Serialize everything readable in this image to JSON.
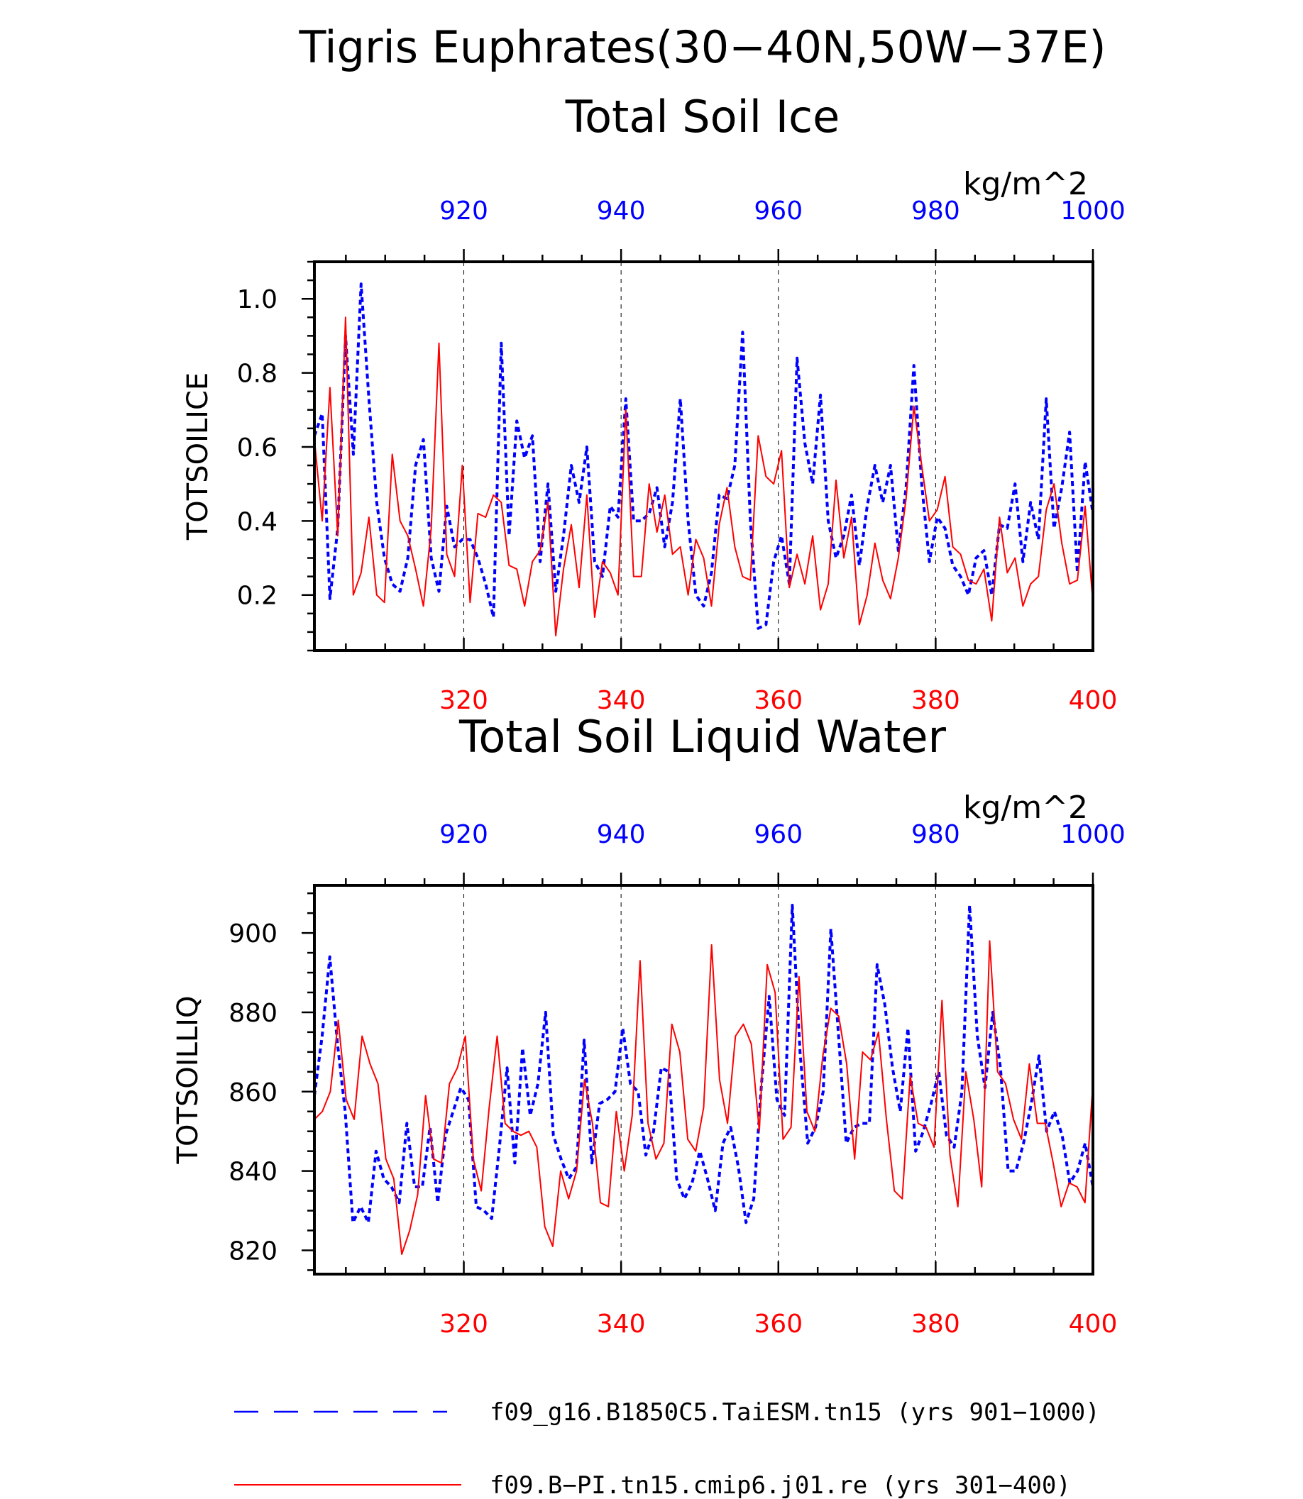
{
  "figure": {
    "title_line1": "Tigris Euphrates(30−40N,50W−37E)",
    "title_line2": "Total Soil Ice"
  },
  "colors": {
    "red": "#ff0000",
    "blue": "#0000ff",
    "axis": "#000000"
  },
  "legend": [
    {
      "label": "f09_g16.B1850C5.TaiESM.tn15 (yrs 901−1000)",
      "color": "#0000ff",
      "style": "dashed"
    },
    {
      "label": "f09.B−PI.tn15.cmip6.j01.re (yrs 301−400)",
      "color": "#ff0000",
      "style": "solid"
    }
  ],
  "chart_data": [
    {
      "type": "line",
      "title": "",
      "units": "kg/m^2",
      "ylabel": "TOTSOILICE",
      "ylim": [
        0.05,
        1.1
      ],
      "yticks": [
        0.2,
        0.4,
        0.6,
        0.8,
        1.0
      ],
      "ytick_labels": [
        "0.2",
        "0.4",
        "0.6",
        "0.8",
        "1.0"
      ],
      "bottom_axis": {
        "range": [
          301,
          400
        ],
        "ticks": [
          320,
          340,
          360,
          380,
          400
        ],
        "tick_labels": [
          "320",
          "340",
          "360",
          "380",
          "400"
        ]
      },
      "top_axis": {
        "range": [
          901,
          1000
        ],
        "ticks": [
          920,
          940,
          960,
          980,
          1000
        ],
        "tick_labels": [
          "920",
          "940",
          "960",
          "980",
          "1000"
        ]
      },
      "grid": "vertical dashed at major x ticks",
      "series": [
        {
          "name": "f09_g16.B1850C5.TaiESM.tn15 (yrs 901−1000)",
          "color": "#0000ff",
          "style": "dashed",
          "axis": "top",
          "values": [
            0.63,
            0.69,
            0.19,
            0.38,
            0.9,
            0.58,
            1.04,
            0.73,
            0.45,
            0.3,
            0.23,
            0.21,
            0.3,
            0.55,
            0.62,
            0.3,
            0.21,
            0.44,
            0.33,
            0.35,
            0.35,
            0.3,
            0.23,
            0.14,
            0.88,
            0.36,
            0.67,
            0.57,
            0.63,
            0.29,
            0.5,
            0.21,
            0.36,
            0.55,
            0.45,
            0.6,
            0.29,
            0.25,
            0.44,
            0.41,
            0.73,
            0.4,
            0.4,
            0.42,
            0.49,
            0.33,
            0.45,
            0.73,
            0.4,
            0.2,
            0.17,
            0.26,
            0.47,
            0.46,
            0.55,
            0.91,
            0.4,
            0.11,
            0.12,
            0.29,
            0.36,
            0.23,
            0.84,
            0.61,
            0.5,
            0.74,
            0.4,
            0.3,
            0.36,
            0.47,
            0.28,
            0.44,
            0.55,
            0.45,
            0.55,
            0.32,
            0.49,
            0.82,
            0.5,
            0.29,
            0.41,
            0.38,
            0.28,
            0.25,
            0.2,
            0.3,
            0.32,
            0.2,
            0.39,
            0.38,
            0.5,
            0.29,
            0.45,
            0.35,
            0.73,
            0.38,
            0.49,
            0.64,
            0.26,
            0.56,
            0.42
          ]
        },
        {
          "name": "f09.B−PI.tn15.cmip6.j01.re (yrs 301−400)",
          "color": "#ff0000",
          "style": "solid",
          "axis": "bottom",
          "values": [
            0.62,
            0.4,
            0.76,
            0.36,
            0.95,
            0.2,
            0.26,
            0.41,
            0.2,
            0.18,
            0.58,
            0.4,
            0.36,
            0.27,
            0.17,
            0.38,
            0.88,
            0.31,
            0.25,
            0.55,
            0.18,
            0.42,
            0.41,
            0.47,
            0.45,
            0.28,
            0.27,
            0.17,
            0.29,
            0.32,
            0.45,
            0.09,
            0.27,
            0.39,
            0.22,
            0.47,
            0.14,
            0.29,
            0.26,
            0.2,
            0.7,
            0.25,
            0.25,
            0.5,
            0.37,
            0.47,
            0.31,
            0.33,
            0.2,
            0.35,
            0.3,
            0.17,
            0.39,
            0.49,
            0.33,
            0.25,
            0.24,
            0.63,
            0.52,
            0.5,
            0.59,
            0.22,
            0.31,
            0.23,
            0.36,
            0.16,
            0.23,
            0.51,
            0.3,
            0.41,
            0.12,
            0.2,
            0.34,
            0.24,
            0.19,
            0.3,
            0.46,
            0.71,
            0.55,
            0.4,
            0.43,
            0.52,
            0.33,
            0.31,
            0.24,
            0.23,
            0.27,
            0.13,
            0.41,
            0.26,
            0.3,
            0.17,
            0.23,
            0.25,
            0.43,
            0.5,
            0.34,
            0.23,
            0.24,
            0.44,
            0.18
          ]
        }
      ]
    },
    {
      "type": "line",
      "title": "Total Soil Liquid Water",
      "units": "kg/m^2",
      "ylabel": "TOTSOILLIQ",
      "ylim": [
        814,
        912
      ],
      "yticks": [
        820,
        840,
        860,
        880,
        900
      ],
      "ytick_labels": [
        "820",
        "840",
        "860",
        "880",
        "900"
      ],
      "bottom_axis": {
        "range": [
          301,
          400
        ],
        "ticks": [
          320,
          340,
          360,
          380,
          400
        ],
        "tick_labels": [
          "320",
          "340",
          "360",
          "380",
          "400"
        ]
      },
      "top_axis": {
        "range": [
          901,
          1000
        ],
        "ticks": [
          920,
          940,
          960,
          980,
          1000
        ],
        "tick_labels": [
          "920",
          "940",
          "960",
          "980",
          "1000"
        ]
      },
      "grid": "vertical dashed at major x ticks",
      "series": [
        {
          "name": "f09_g16.B1850C5.TaiESM.tn15 (yrs 901−1000)",
          "color": "#0000ff",
          "style": "dashed",
          "axis": "top",
          "values": [
            859,
            874,
            894,
            872,
            855,
            827,
            831,
            827,
            845,
            838,
            836,
            832,
            852,
            836,
            836,
            851,
            832,
            849,
            855,
            861,
            858,
            831,
            830,
            828,
            846,
            866,
            842,
            871,
            854,
            862,
            880,
            849,
            843,
            838,
            841,
            873,
            842,
            857,
            858,
            860,
            876,
            862,
            860,
            844,
            850,
            866,
            865,
            838,
            833,
            837,
            845,
            838,
            830,
            847,
            851,
            841,
            827,
            833,
            862,
            884,
            858,
            854,
            907,
            870,
            847,
            851,
            860,
            901,
            874,
            847,
            851,
            852,
            852,
            892,
            882,
            866,
            855,
            876,
            845,
            850,
            857,
            865,
            849,
            846,
            860,
            907,
            874,
            861,
            880,
            866,
            840,
            840,
            847,
            857,
            869,
            850,
            855,
            849,
            837,
            840,
            847,
            836
          ]
        },
        {
          "name": "f09.B−PI.tn15.cmip6.j01.re (yrs 301−400)",
          "color": "#ff0000",
          "style": "solid",
          "axis": "bottom",
          "values": [
            853,
            855,
            860,
            878,
            858,
            853,
            874,
            867,
            862,
            843,
            838,
            819,
            825,
            834,
            859,
            843,
            842,
            862,
            866,
            874,
            843,
            835,
            856,
            874,
            852,
            850,
            849,
            850,
            846,
            826,
            821,
            840,
            833,
            840,
            863,
            852,
            832,
            831,
            855,
            840,
            854,
            893,
            852,
            843,
            847,
            877,
            870,
            848,
            845,
            856,
            897,
            863,
            852,
            874,
            877,
            872,
            850,
            892,
            885,
            848,
            851,
            889,
            855,
            850,
            869,
            881,
            879,
            867,
            843,
            870,
            868,
            875,
            853,
            835,
            833,
            864,
            852,
            851,
            846,
            883,
            844,
            831,
            865,
            853,
            836,
            898,
            865,
            862,
            853,
            848,
            867,
            852,
            852,
            842,
            831,
            837,
            836,
            832,
            862
          ]
        }
      ]
    }
  ]
}
